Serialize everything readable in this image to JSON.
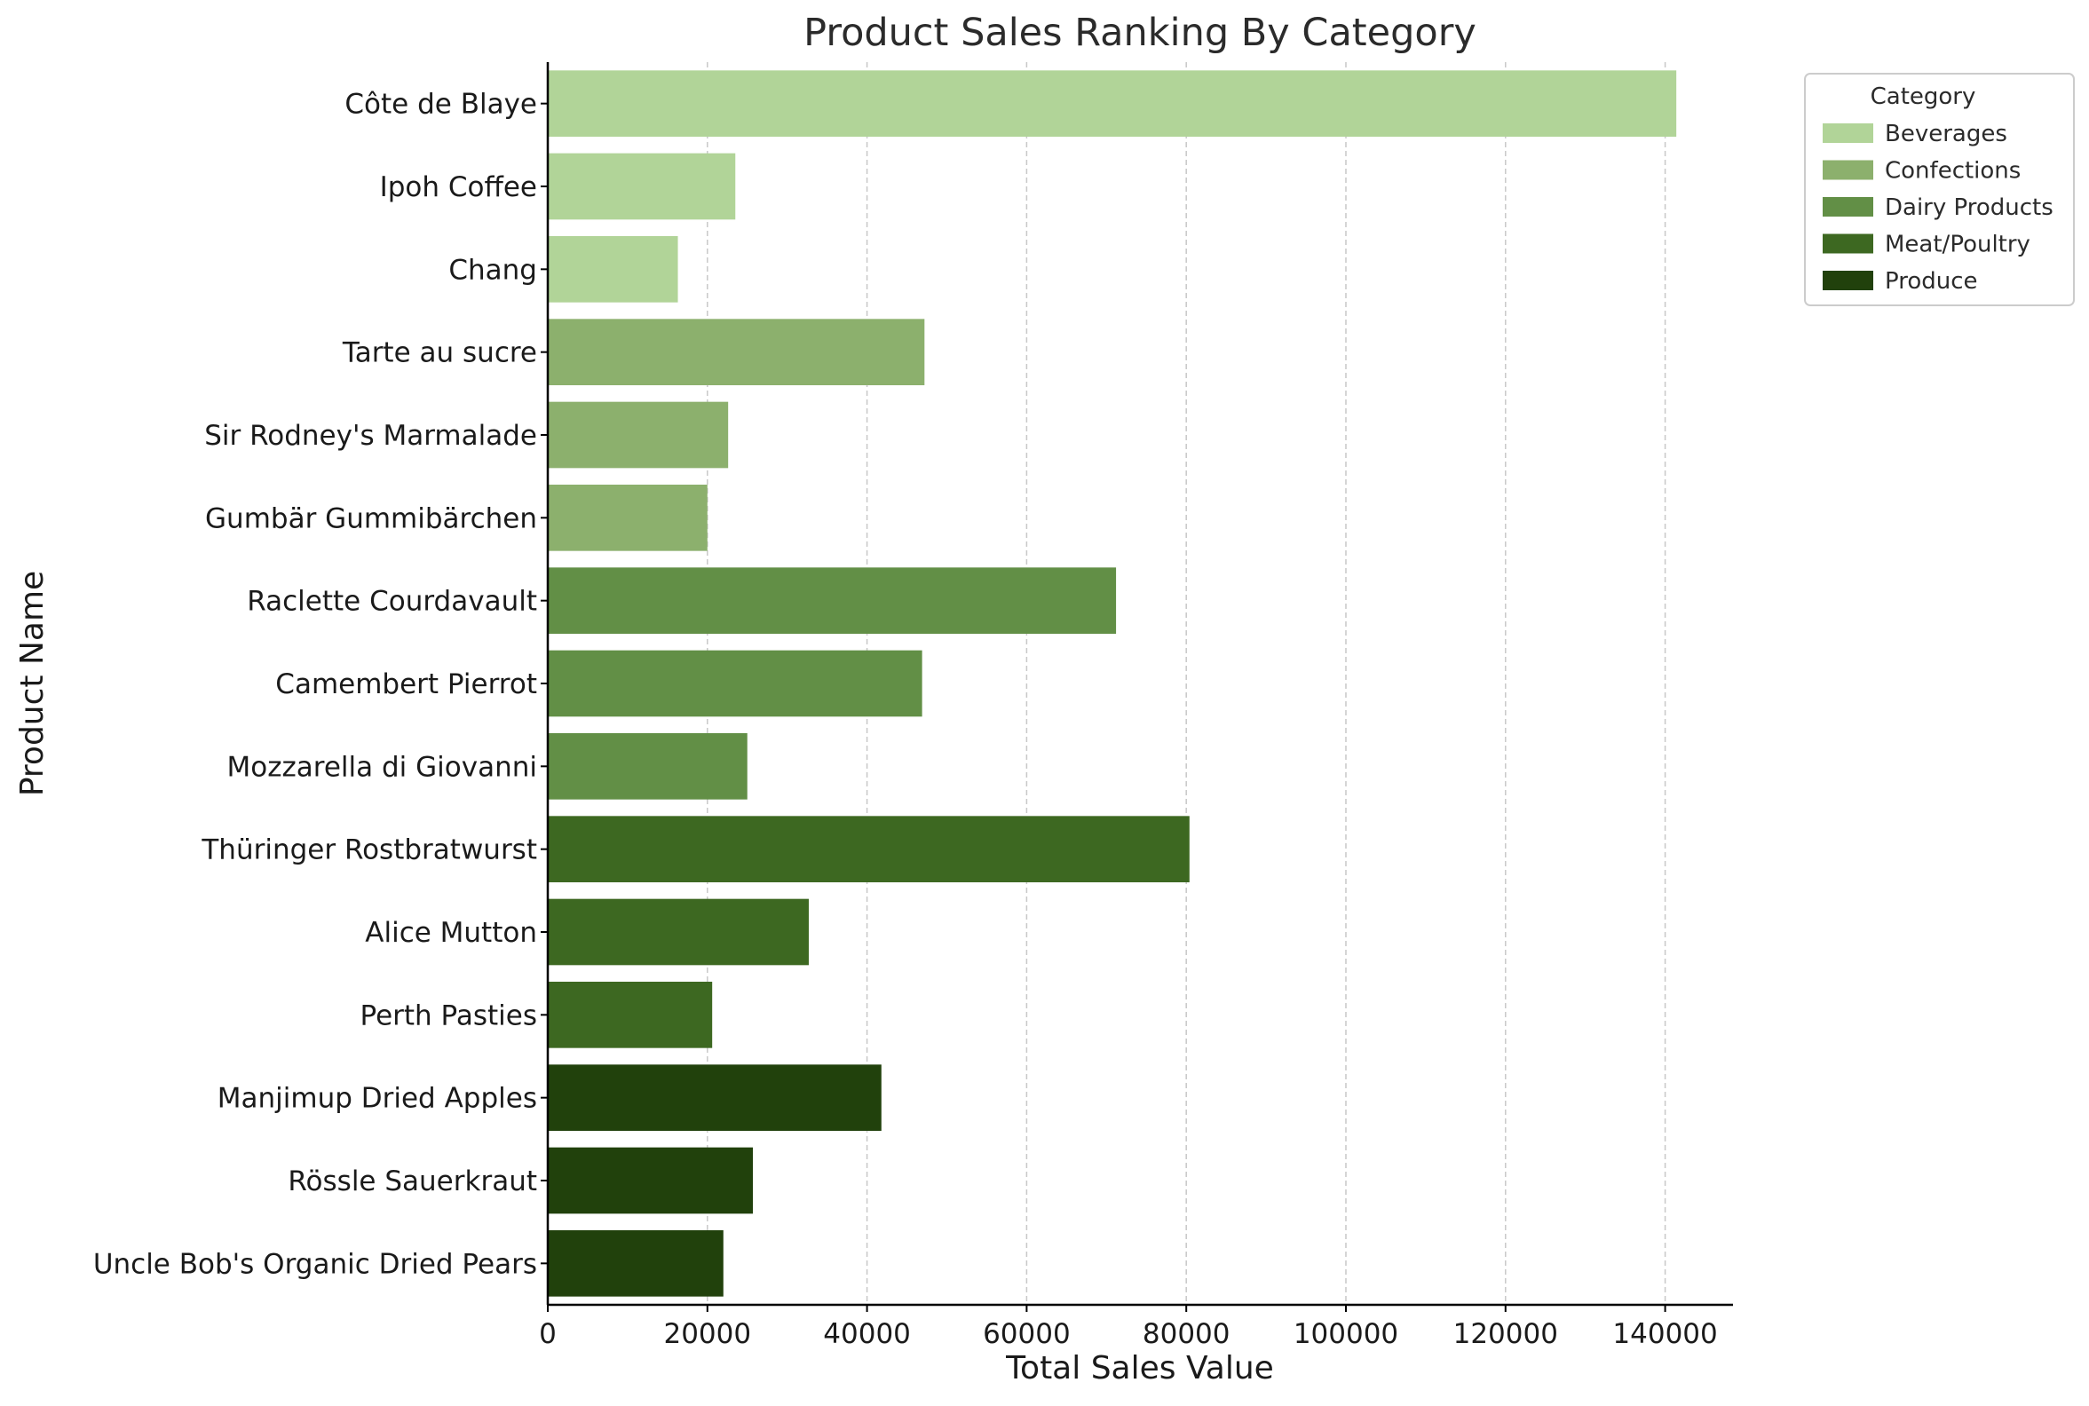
{
  "chart_data": {
    "type": "bar",
    "orientation": "horizontal",
    "title": "Product Sales Ranking By Category",
    "xlabel": "Total Sales Value",
    "ylabel": "Product Name",
    "xlim": [
      0,
      148500
    ],
    "xticks": [
      0,
      20000,
      40000,
      60000,
      80000,
      100000,
      120000,
      140000
    ],
    "xtick_labels": [
      "0",
      "20000",
      "40000",
      "60000",
      "80000",
      "100000",
      "120000",
      "140000"
    ],
    "grid": "x-dashed",
    "legend": {
      "title": "Category",
      "placement": "outside-top-right",
      "entries": [
        {
          "label": "Beverages",
          "color": "#b1d498"
        },
        {
          "label": "Confections",
          "color": "#8cb06d"
        },
        {
          "label": "Dairy Products",
          "color": "#628f46"
        },
        {
          "label": "Meat/Poultry",
          "color": "#3d6821"
        },
        {
          "label": "Produce",
          "color": "#21410c"
        }
      ]
    },
    "categories": [
      "Côte de Blaye",
      "Ipoh Coffee",
      "Chang",
      "Tarte au sucre",
      "Sir Rodney's Marmalade",
      "Gumbär Gummibärchen",
      "Raclette Courdavault",
      "Camembert Pierrot",
      "Mozzarella di Giovanni",
      "Thüringer Rostbratwurst",
      "Alice Mutton",
      "Perth Pasties",
      "Manjimup Dried Apples",
      "Rössle Sauerkraut",
      "Uncle Bob's Organic Dried Pears"
    ],
    "values": [
      141400,
      23500,
      16300,
      47200,
      22600,
      20000,
      71200,
      46900,
      25000,
      80400,
      32700,
      20600,
      41800,
      25700,
      22000
    ],
    "bar_category": [
      "Beverages",
      "Beverages",
      "Beverages",
      "Confections",
      "Confections",
      "Confections",
      "Dairy Products",
      "Dairy Products",
      "Dairy Products",
      "Meat/Poultry",
      "Meat/Poultry",
      "Meat/Poultry",
      "Produce",
      "Produce",
      "Produce"
    ]
  }
}
